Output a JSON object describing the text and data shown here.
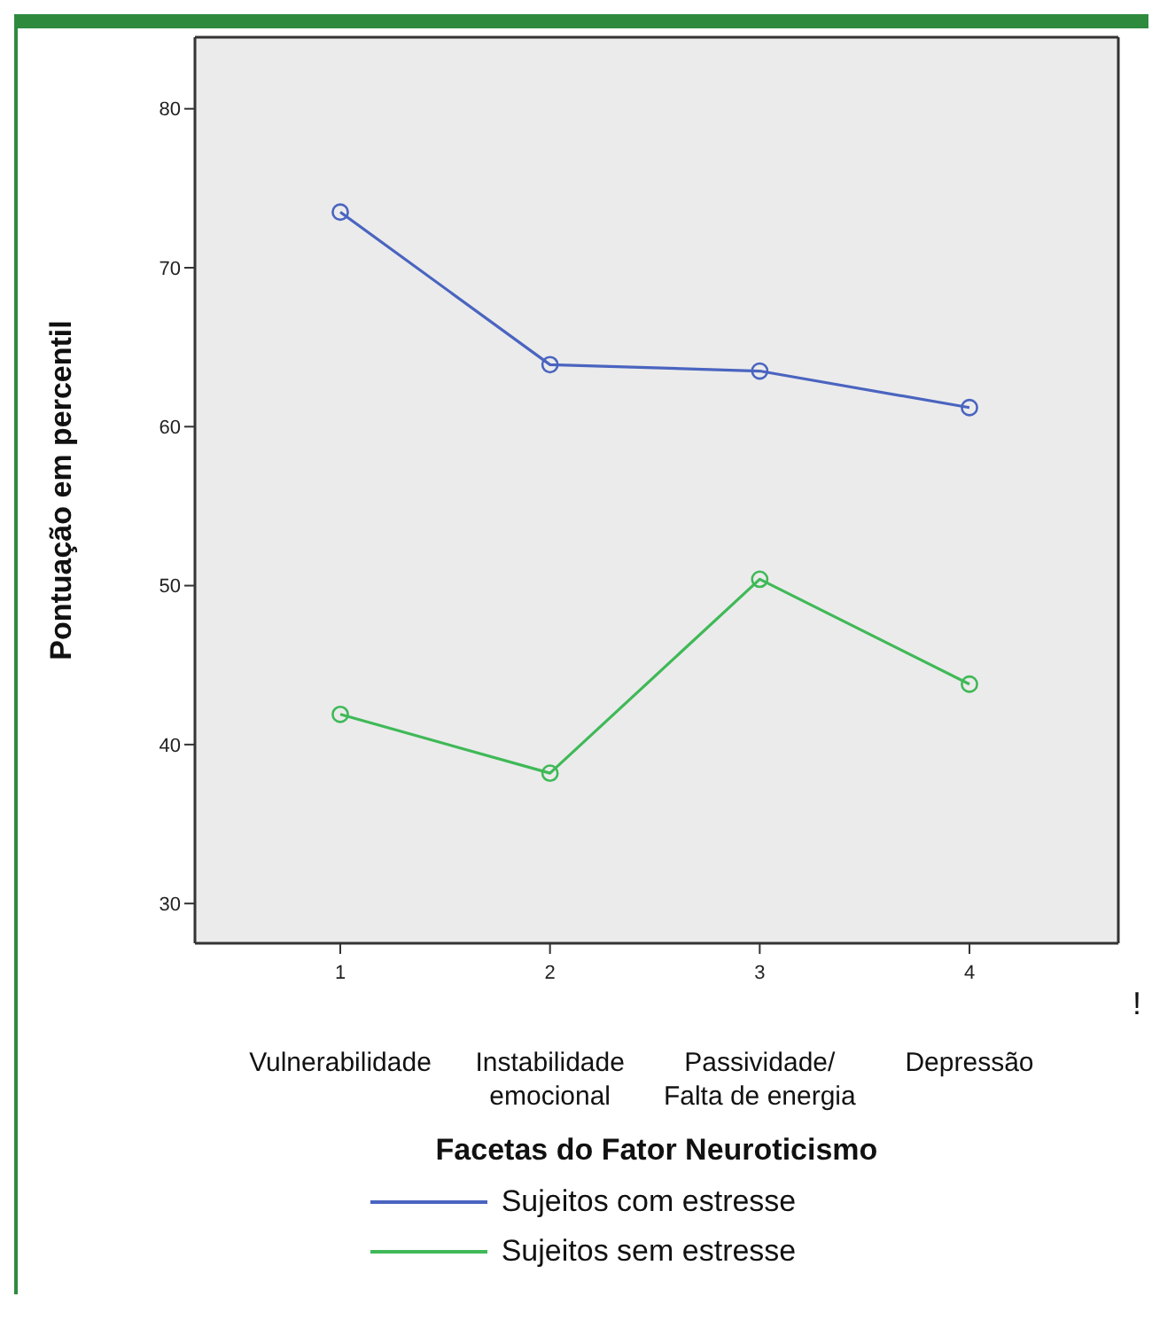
{
  "chart_data": {
    "type": "line",
    "xlabel": "Facetas do Fator Neuroticismo",
    "ylabel": "Pontuação em percentil",
    "categories": [
      "1",
      "2",
      "3",
      "4"
    ],
    "series": [
      {
        "name": "Sujeitos com estresse",
        "color": "#4a64c0",
        "values": [
          73.5,
          63.9,
          63.5,
          61.2
        ]
      },
      {
        "name": "Sujeitos sem estresse",
        "color": "#3fb957",
        "values": [
          41.9,
          38.2,
          50.4,
          43.8
        ]
      }
    ],
    "ylim": [
      27.5,
      84.5
    ],
    "yticks": [
      30,
      40,
      50,
      60,
      70,
      80
    ],
    "marker": "circle",
    "line_style": "solid",
    "grid": false,
    "legend": "bottom",
    "annotations": [
      "Vulnerabilidade",
      "Instabilidade emocional",
      "Passividade/ Falta de energia",
      "Depressão",
      "!"
    ]
  }
}
